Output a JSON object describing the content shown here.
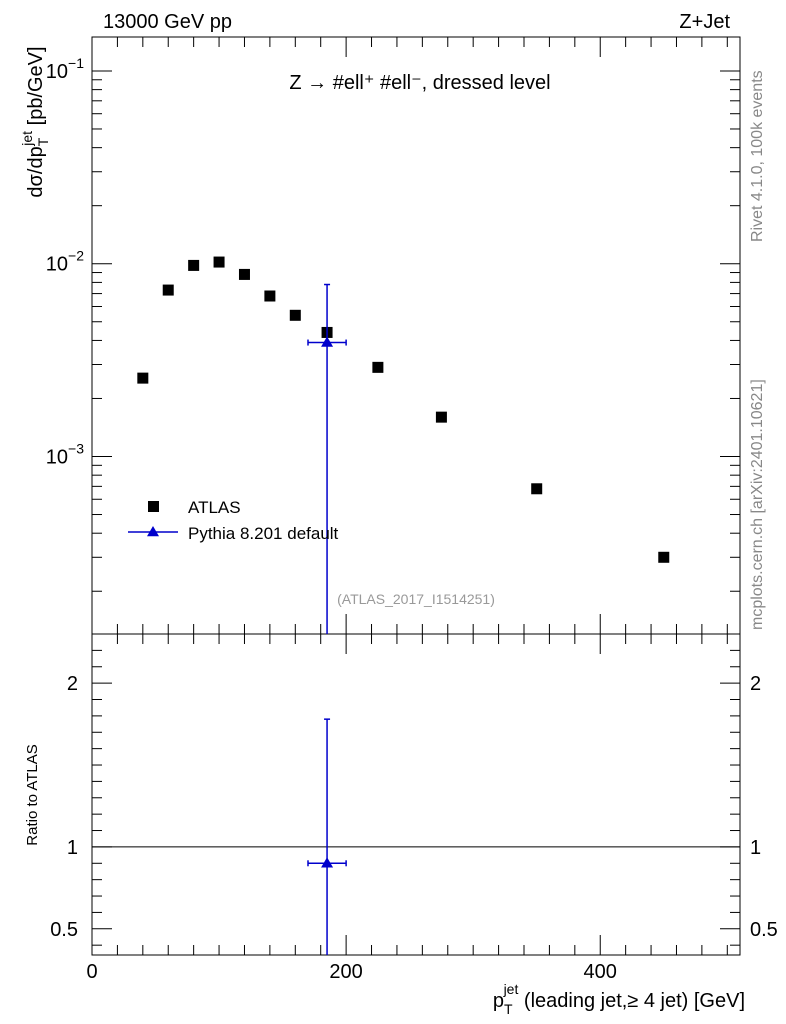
{
  "header": {
    "left": "13000 GeV pp",
    "right": "Z+Jet"
  },
  "side_labels": {
    "rivet": "Rivet 4.1.0,  100k events",
    "mcplots": "mcplots.cern.ch [arXiv:2401.10621]"
  },
  "chart_data": [
    {
      "type": "scatter",
      "panel": "main",
      "title": "Z → #ell⁺ #ell⁻, dressed level",
      "ylabel": "dσ/dp_T^jet [pb/GeV]",
      "ylabel_parts": {
        "base": "dσ/dp",
        "sub": "T",
        "sup": "jet",
        "unit": "[pb/GeV]"
      },
      "xlim": [
        0,
        510
      ],
      "ylim": [
        0.00012,
        0.15
      ],
      "yscale": "log",
      "y_ticks": [
        {
          "value": 0.001,
          "mantissa": "10",
          "exponent": "−3"
        },
        {
          "value": 0.01,
          "mantissa": "10",
          "exponent": "−2"
        },
        {
          "value": 0.1,
          "mantissa": "10",
          "exponent": "−1"
        }
      ],
      "watermark": "(ATLAS_2017_I1514251)",
      "legend": {
        "placement": "lower-left"
      },
      "series": [
        {
          "name": "ATLAS",
          "marker": "square",
          "color": "#000000",
          "x": [
            40,
            60,
            80,
            100,
            120,
            140,
            160,
            185,
            225,
            275,
            350,
            450
          ],
          "y": [
            0.00255,
            0.0073,
            0.0098,
            0.0102,
            0.0088,
            0.0068,
            0.0054,
            0.0044,
            0.0029,
            0.0016,
            0.00068,
            0.0003
          ]
        },
        {
          "name": "Pythia 8.201 default",
          "marker": "triangle",
          "color": "#0000cc",
          "x": [
            185
          ],
          "y": [
            0.0039
          ],
          "xerr": [
            [
              15
            ],
            [
              15
            ]
          ],
          "yerr_low": [
            0.00012
          ],
          "yerr_high": [
            0.0078
          ]
        }
      ]
    },
    {
      "type": "scatter",
      "panel": "ratio",
      "ylabel": "Ratio to ATLAS",
      "xlabel": "p_T^jet (leading jet,≥ 4 jet) [GeV]",
      "xlabel_parts": {
        "base": "p",
        "sub": "T",
        "sup": "jet",
        "rest": " (leading jet,≥ 4 jet) [GeV]"
      },
      "xlim": [
        0,
        510
      ],
      "ylim": [
        0.34,
        2.3
      ],
      "y_ticks": [
        0.5,
        1,
        2
      ],
      "y_tick_labels": [
        "0.5",
        "1",
        "2"
      ],
      "x_ticks": [
        0,
        200,
        400
      ],
      "x_tick_labels": [
        "0",
        "200",
        "400"
      ],
      "reference_line": 1,
      "series": [
        {
          "name": "Pythia 8.201 default",
          "color": "#0000cc",
          "x": [
            185
          ],
          "y": [
            0.9
          ],
          "xerr": [
            [
              15
            ],
            [
              15
            ]
          ],
          "yerr_low": [
            0.34
          ],
          "yerr_high": [
            1.78
          ]
        }
      ]
    }
  ]
}
